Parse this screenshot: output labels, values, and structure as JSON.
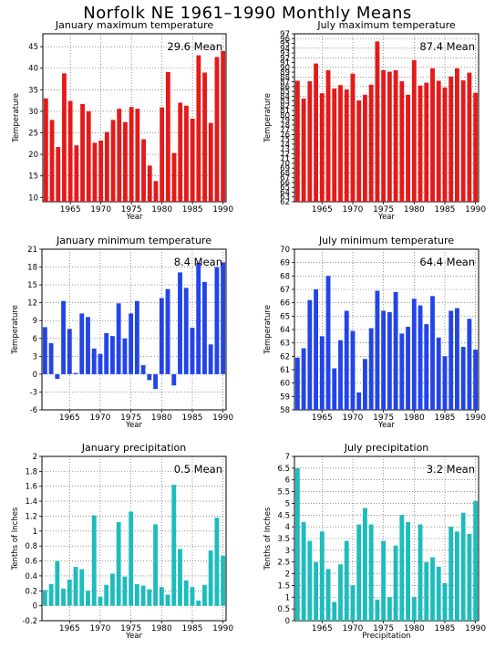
{
  "page": {
    "title": "Norfolk NE   1961–1990  Monthly Means"
  },
  "chart_data": [
    {
      "type": "bar",
      "title": "January maximum temperature",
      "mean_label": "29.6  Mean",
      "xlabel": "Year",
      "ylabel": "Temperature",
      "color": "#e41a1a",
      "ylim": [
        9,
        48
      ],
      "yticks": [
        10,
        15,
        20,
        25,
        30,
        35,
        40,
        45
      ],
      "xticks": [
        1965,
        1970,
        1975,
        1980,
        1985,
        1990
      ],
      "x": [
        1961,
        1962,
        1963,
        1964,
        1965,
        1966,
        1967,
        1968,
        1969,
        1970,
        1971,
        1972,
        1973,
        1974,
        1975,
        1976,
        1977,
        1978,
        1979,
        1980,
        1981,
        1982,
        1983,
        1984,
        1985,
        1986,
        1987,
        1988,
        1989,
        1990
      ],
      "values": [
        33.0,
        28.0,
        21.7,
        38.8,
        32.4,
        22.1,
        31.7,
        30.0,
        22.7,
        23.2,
        25.2,
        28.0,
        30.6,
        27.5,
        31.0,
        30.6,
        23.5,
        17.4,
        13.8,
        30.9,
        39.1,
        20.3,
        32.0,
        31.3,
        28.3,
        43.0,
        39.0,
        27.3,
        42.6,
        44.0
      ]
    },
    {
      "type": "bar",
      "title": "July maximum temperature",
      "mean_label": "87.4  Mean",
      "xlabel": "Year",
      "ylabel": "Temperature",
      "color": "#e41a1a",
      "ylim": [
        62,
        97
      ],
      "yticks": [
        62,
        63,
        64,
        65,
        66,
        67,
        68,
        69,
        70,
        71,
        72,
        73,
        74,
        75,
        76,
        77,
        78,
        79,
        80,
        81,
        82,
        83,
        84,
        85,
        86,
        87,
        88,
        89,
        90,
        91,
        92,
        93,
        94,
        95,
        96,
        97
      ],
      "xticks": [
        1965,
        1970,
        1975,
        1980,
        1985,
        1990
      ],
      "x": [
        1961,
        1962,
        1963,
        1964,
        1965,
        1966,
        1967,
        1968,
        1969,
        1970,
        1971,
        1972,
        1973,
        1974,
        1975,
        1976,
        1977,
        1978,
        1979,
        1980,
        1981,
        1982,
        1983,
        1984,
        1985,
        1986,
        1987,
        1988,
        1989,
        1990
      ],
      "values": [
        87.2,
        83.5,
        87.1,
        90.8,
        84.6,
        89.4,
        85.6,
        86.3,
        85.4,
        88.7,
        83.1,
        84.3,
        86.4,
        95.4,
        89.4,
        89.1,
        89.4,
        87.1,
        84.3,
        91.5,
        86.2,
        86.8,
        89.8,
        87.2,
        85.8,
        88.1,
        89.8,
        87.3,
        88.9,
        84.7
      ]
    },
    {
      "type": "bar",
      "title": "January minimum temperature",
      "mean_label": "8.4  Mean",
      "xlabel": "Year",
      "ylabel": "Temperature",
      "color": "#2244e8",
      "ylim": [
        -6,
        21
      ],
      "yticks": [
        -6,
        -3,
        0,
        3,
        6,
        9,
        12,
        15,
        18,
        21
      ],
      "xticks": [
        1965,
        1970,
        1975,
        1980,
        1985,
        1990
      ],
      "x": [
        1961,
        1962,
        1963,
        1964,
        1965,
        1966,
        1967,
        1968,
        1969,
        1970,
        1971,
        1972,
        1973,
        1974,
        1975,
        1976,
        1977,
        1978,
        1979,
        1980,
        1981,
        1982,
        1983,
        1984,
        1985,
        1986,
        1987,
        1988,
        1989,
        1990
      ],
      "values": [
        7.9,
        5.2,
        -0.8,
        12.3,
        7.6,
        0.2,
        10.2,
        9.6,
        4.3,
        3.4,
        6.9,
        6.4,
        11.9,
        6.0,
        10.2,
        12.3,
        1.5,
        -1.0,
        -2.5,
        12.8,
        14.3,
        -1.9,
        17.1,
        14.5,
        7.8,
        18.7,
        15.5,
        5.0,
        18.0,
        18.8
      ]
    },
    {
      "type": "bar",
      "title": "July minimum temperature",
      "mean_label": "64.4  Mean",
      "xlabel": "Year",
      "ylabel": "Temperature",
      "color": "#2244e8",
      "ylim": [
        58,
        70
      ],
      "yticks": [
        58,
        59,
        60,
        61,
        62,
        63,
        64,
        65,
        66,
        67,
        68,
        69,
        70
      ],
      "xticks": [
        1965,
        1970,
        1975,
        1980,
        1985,
        1990
      ],
      "x": [
        1961,
        1962,
        1963,
        1964,
        1965,
        1966,
        1967,
        1968,
        1969,
        1970,
        1971,
        1972,
        1973,
        1974,
        1975,
        1976,
        1977,
        1978,
        1979,
        1980,
        1981,
        1982,
        1983,
        1984,
        1985,
        1986,
        1987,
        1988,
        1989,
        1990
      ],
      "values": [
        61.9,
        62.6,
        66.2,
        67.0,
        63.5,
        68.0,
        61.1,
        63.2,
        65.4,
        63.9,
        59.3,
        61.8,
        64.1,
        66.9,
        65.4,
        65.3,
        66.8,
        63.7,
        64.2,
        66.3,
        65.8,
        64.4,
        66.5,
        63.4,
        62.0,
        65.4,
        65.6,
        62.7,
        64.8,
        62.5
      ]
    },
    {
      "type": "bar",
      "title": "January precipitation",
      "mean_label": "0.5  Mean",
      "xlabel": "Year",
      "ylabel": "Tenths of Inches",
      "color": "#1ebcbc",
      "ylim": [
        -0.2,
        2.0
      ],
      "yticks": [
        -0.2,
        0,
        0.2,
        0.4,
        0.6,
        0.8,
        1,
        1.2,
        1.4,
        1.6,
        1.8,
        2
      ],
      "xticks": [
        1965,
        1970,
        1975,
        1980,
        1985,
        1990
      ],
      "x": [
        1961,
        1962,
        1963,
        1964,
        1965,
        1966,
        1967,
        1968,
        1969,
        1970,
        1971,
        1972,
        1973,
        1974,
        1975,
        1976,
        1977,
        1978,
        1979,
        1980,
        1981,
        1982,
        1983,
        1984,
        1985,
        1986,
        1987,
        1988,
        1989,
        1990
      ],
      "values": [
        0.21,
        0.29,
        0.6,
        0.23,
        0.35,
        0.52,
        0.49,
        0.2,
        1.21,
        0.12,
        0.28,
        0.43,
        1.12,
        0.39,
        1.26,
        0.29,
        0.27,
        0.22,
        1.09,
        0.25,
        0.15,
        1.62,
        0.76,
        0.34,
        0.25,
        0.07,
        0.28,
        0.74,
        1.18,
        0.67
      ]
    },
    {
      "type": "bar",
      "title": "July precipitation",
      "mean_label": "3.2  Mean",
      "xlabel": "Precipitation",
      "ylabel": "Tenths of Inches",
      "color": "#1ebcbc",
      "ylim": [
        0,
        7
      ],
      "yticks": [
        0,
        0.5,
        1,
        1.5,
        2,
        2.5,
        3,
        3.5,
        4,
        4.5,
        5,
        5.5,
        6,
        6.5,
        7
      ],
      "xticks": [
        1965,
        1970,
        1975,
        1980,
        1985,
        1990
      ],
      "x": [
        1961,
        1962,
        1963,
        1964,
        1965,
        1966,
        1967,
        1968,
        1969,
        1970,
        1971,
        1972,
        1973,
        1974,
        1975,
        1976,
        1977,
        1978,
        1979,
        1980,
        1981,
        1982,
        1983,
        1984,
        1985,
        1986,
        1987,
        1988,
        1989,
        1990
      ],
      "values": [
        6.5,
        4.2,
        3.4,
        2.5,
        3.8,
        2.2,
        0.8,
        2.4,
        3.4,
        1.5,
        4.1,
        4.8,
        4.1,
        0.9,
        3.4,
        1.0,
        3.2,
        4.5,
        4.2,
        1.0,
        4.1,
        2.5,
        2.7,
        2.3,
        1.6,
        4.0,
        3.8,
        4.6,
        3.7,
        5.1
      ]
    }
  ]
}
